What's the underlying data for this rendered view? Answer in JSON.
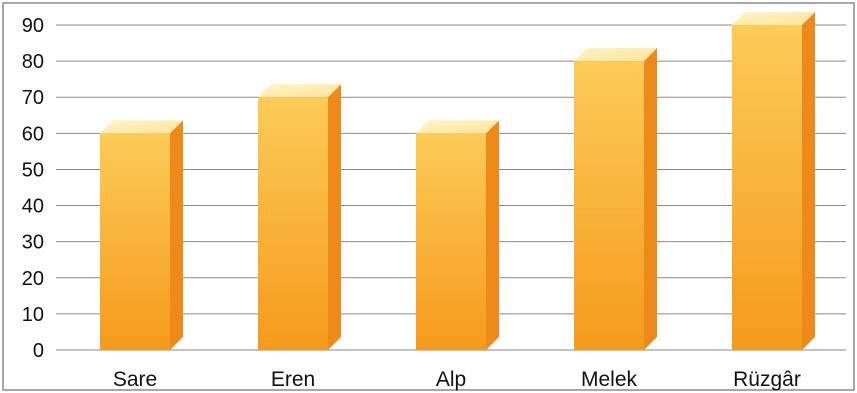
{
  "chart_data": {
    "type": "bar",
    "categories": [
      "Sare",
      "Eren",
      "Alp",
      "Melek",
      "Rüzgâr"
    ],
    "values": [
      60,
      70,
      60,
      80,
      90
    ],
    "title": "",
    "xlabel": "",
    "ylabel": "",
    "ylim": [
      0,
      90
    ],
    "yticks": [
      0,
      10,
      20,
      30,
      40,
      50,
      60,
      70,
      80,
      90
    ],
    "grid": true,
    "style": "3d",
    "colors": {
      "bar_front_top": "#fccb58",
      "bar_front_bottom": "#f59a1c",
      "bar_side": "#ee8a1a",
      "bar_top": "#fde49a",
      "grid": "#8a8a8a",
      "frame": "#8a8a8a"
    }
  }
}
